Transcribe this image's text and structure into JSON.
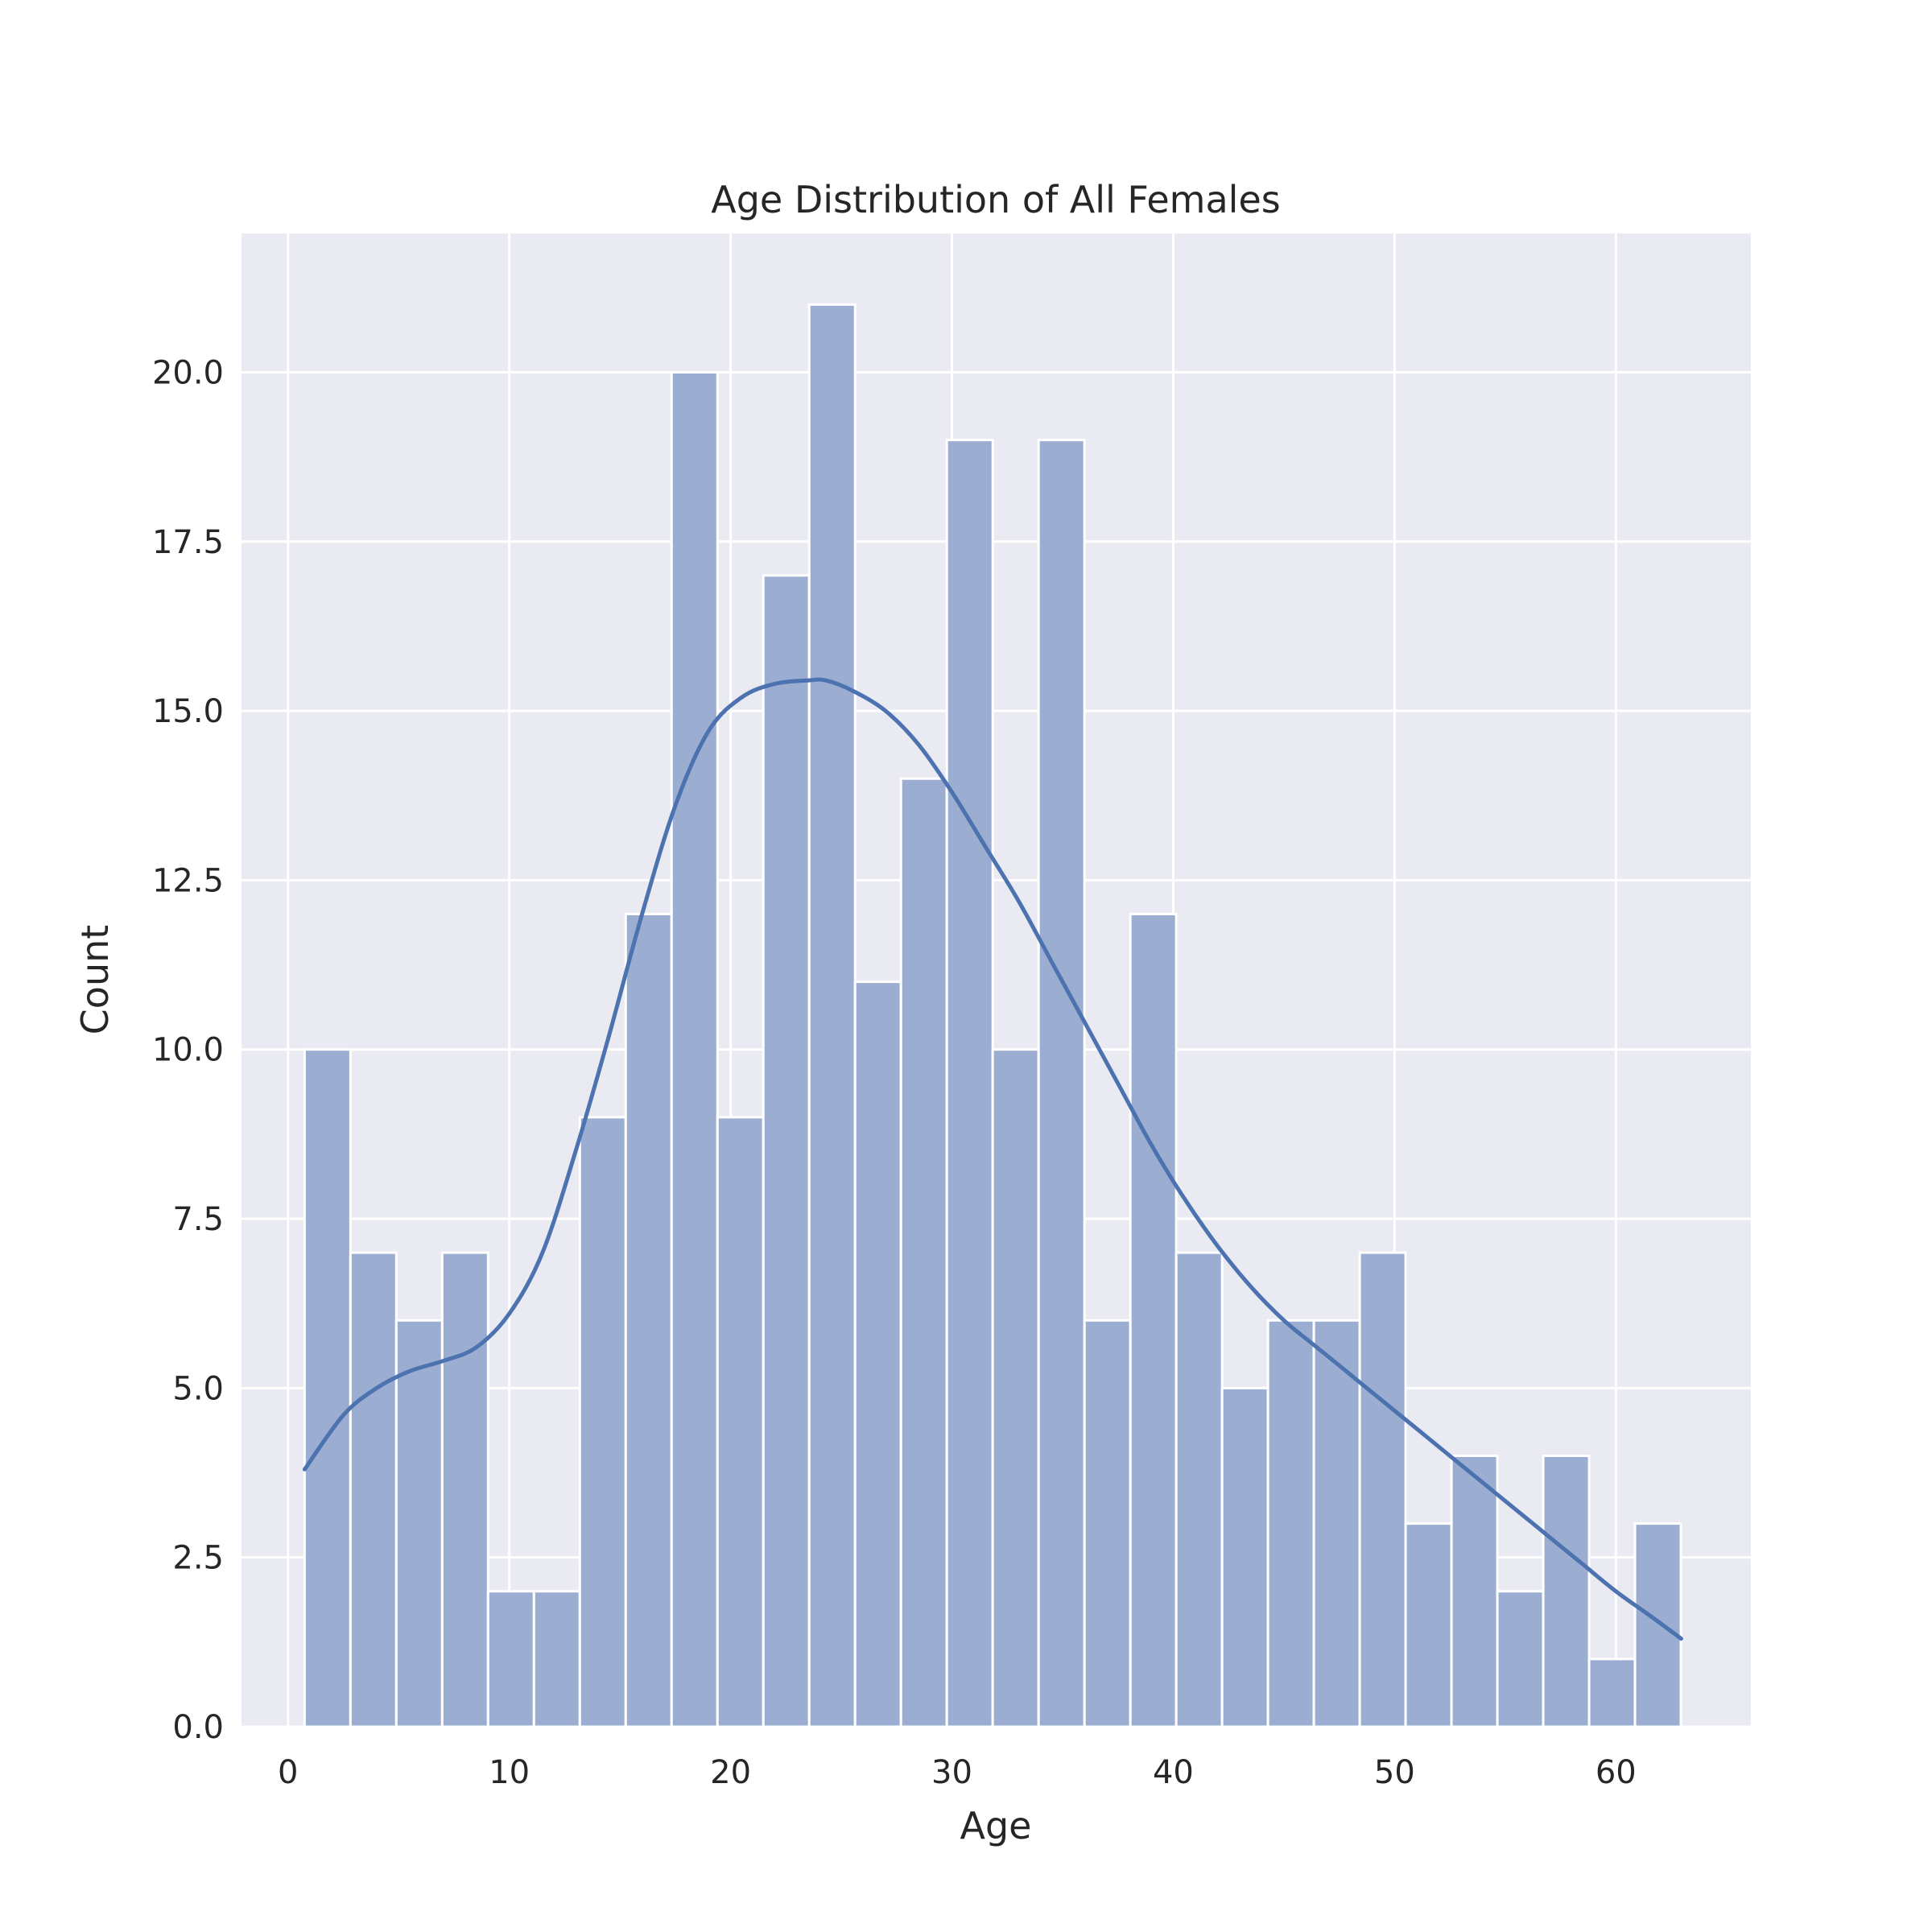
{
  "chart_data": {
    "type": "bar",
    "title": "Age Distribution of All Females",
    "xlabel": "Age",
    "ylabel": "Count",
    "xlim": [
      -2.1,
      66.1
    ],
    "ylim": [
      0,
      22.05
    ],
    "xticks": [
      0,
      10,
      20,
      30,
      40,
      50,
      60
    ],
    "yticks": [
      0,
      2.5,
      5,
      7.5,
      10,
      12.5,
      15,
      17.5,
      20
    ],
    "ytick_labels": [
      "0.0",
      "2.5",
      "5.0",
      "7.5",
      "10.0",
      "12.5",
      "15.0",
      "17.5",
      "20.0"
    ],
    "bin_start": 0.75,
    "bin_width": 2.0729,
    "values": [
      10,
      7,
      6,
      7,
      2,
      2,
      9,
      12,
      20,
      9,
      17,
      21,
      11,
      14,
      19,
      10,
      19,
      6,
      12,
      7,
      5,
      6,
      6,
      7,
      3,
      4,
      2,
      4,
      1,
      3
    ],
    "kde_curve": {
      "x": [
        0.75,
        2.5,
        4,
        5.5,
        7,
        8.5,
        10,
        11.5,
        13,
        14.5,
        16,
        17.5,
        19,
        20.5,
        22,
        23.5,
        24.3,
        25.5,
        27,
        28.5,
        30,
        31.5,
        33,
        34.5,
        36,
        37.5,
        39,
        40.5,
        42,
        43.5,
        45,
        46.5,
        48,
        49.5,
        51,
        52.5,
        54,
        55.5,
        57,
        58.5,
        60,
        61.5,
        62.95
      ],
      "y": [
        3.8,
        4.6,
        5.0,
        5.25,
        5.4,
        5.6,
        6.1,
        7.0,
        8.5,
        10.2,
        12.0,
        13.6,
        14.7,
        15.2,
        15.4,
        15.45,
        15.45,
        15.3,
        15.0,
        14.5,
        13.8,
        13.0,
        12.2,
        11.3,
        10.4,
        9.5,
        8.6,
        7.8,
        7.1,
        6.5,
        6.0,
        5.6,
        5.2,
        4.8,
        4.4,
        4.0,
        3.6,
        3.2,
        2.8,
        2.4,
        2.0,
        1.65,
        1.3
      ]
    },
    "colors": {
      "background": "#eaeaf2",
      "grid": "#ffffff",
      "bar_fill": "#9badd1",
      "bar_edge": "#ffffff",
      "kde_line": "#4c72b0",
      "text": "#262626"
    },
    "grid": true
  }
}
